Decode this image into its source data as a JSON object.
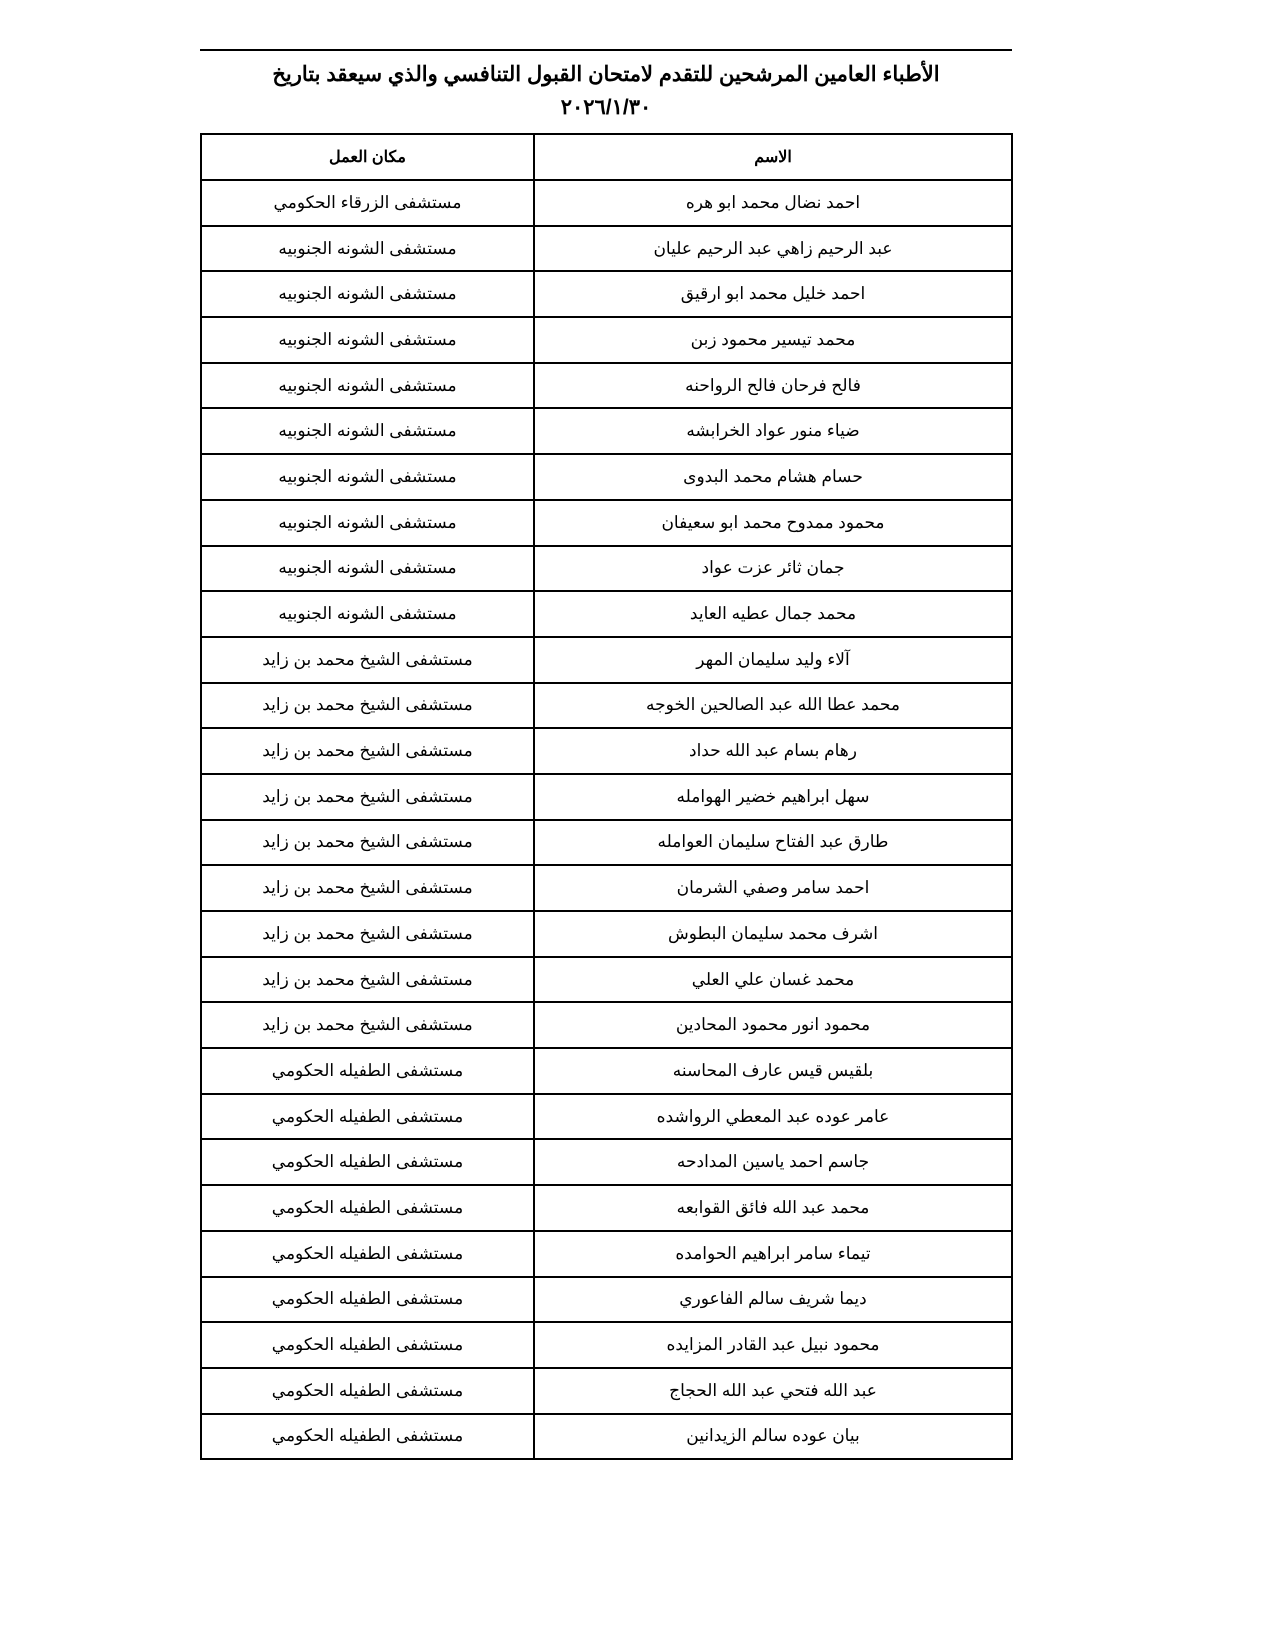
{
  "title": {
    "line1": "الأطباء العامين المرشحين للتقدم لامتحان القبول التنافسي والذي سيعقد بتاريخ",
    "line2": "٢٠٢٦/١/٣٠"
  },
  "table": {
    "headers": {
      "name": "الاسم",
      "workplace": "مكان العمل"
    },
    "rows": [
      {
        "name": "احمد نضال محمد ابو هره",
        "workplace": "مستشفى الزرقاء الحكومي"
      },
      {
        "name": "عبد الرحيم زاهي عبد الرحيم عليان",
        "workplace": "مستشفى الشونه الجنوبيه"
      },
      {
        "name": "احمد خليل محمد ابو ارقيق",
        "workplace": "مستشفى الشونه الجنوبيه"
      },
      {
        "name": "محمد تيسير محمود زبن",
        "workplace": "مستشفى الشونه الجنوبيه"
      },
      {
        "name": "فالح فرحان فالح الرواحنه",
        "workplace": "مستشفى الشونه الجنوبيه"
      },
      {
        "name": "ضياء منور عواد الخرابشه",
        "workplace": "مستشفى الشونه الجنوبيه"
      },
      {
        "name": "حسام هشام محمد البدوى",
        "workplace": "مستشفى الشونه الجنوبيه"
      },
      {
        "name": "محمود ممدوح محمد ابو سعيفان",
        "workplace": "مستشفى الشونه الجنوبيه"
      },
      {
        "name": "جمان ثائر عزت عواد",
        "workplace": "مستشفى الشونه الجنوبيه"
      },
      {
        "name": "محمد جمال عطيه العايد",
        "workplace": "مستشفى الشونه الجنوبيه"
      },
      {
        "name": "آلاء وليد سليمان المهر",
        "workplace": "مستشفى الشيخ محمد بن زايد"
      },
      {
        "name": "محمد عطا الله عبد الصالحين الخوجه",
        "workplace": "مستشفى الشيخ محمد بن زايد"
      },
      {
        "name": "رهام بسام عبد الله حداد",
        "workplace": "مستشفى الشيخ محمد بن زايد"
      },
      {
        "name": "سهل ابراهيم خضير الهوامله",
        "workplace": "مستشفى الشيخ محمد بن زايد"
      },
      {
        "name": "طارق عبد الفتاح سليمان العوامله",
        "workplace": "مستشفى الشيخ محمد بن زايد"
      },
      {
        "name": "احمد سامر وصفي الشرمان",
        "workplace": "مستشفى الشيخ محمد بن زايد"
      },
      {
        "name": "اشرف محمد سليمان البطوش",
        "workplace": "مستشفى الشيخ محمد بن زايد"
      },
      {
        "name": "محمد غسان علي العلي",
        "workplace": "مستشفى الشيخ محمد بن زايد"
      },
      {
        "name": "محمود انور محمود المحادين",
        "workplace": "مستشفى الشيخ محمد بن زايد"
      },
      {
        "name": "بلقيس قيس عارف المحاسنه",
        "workplace": "مستشفى الطفيله الحكومي"
      },
      {
        "name": "عامر عوده عبد المعطي الرواشده",
        "workplace": "مستشفى الطفيله الحكومي"
      },
      {
        "name": "جاسم احمد ياسين المدادحه",
        "workplace": "مستشفى الطفيله الحكومي"
      },
      {
        "name": "محمد عبد الله فائق القوابعه",
        "workplace": "مستشفى الطفيله الحكومي"
      },
      {
        "name": "تيماء سامر ابراهيم الحوامده",
        "workplace": "مستشفى الطفيله الحكومي"
      },
      {
        "name": "ديما شريف سالم الفاعوري",
        "workplace": "مستشفى الطفيله الحكومي"
      },
      {
        "name": "محمود نبيل عبد القادر المزايده",
        "workplace": "مستشفى الطفيله الحكومي"
      },
      {
        "name": "عبد الله فتحي عبد الله الحجاج",
        "workplace": "مستشفى الطفيله الحكومي"
      },
      {
        "name": "بيان عوده سالم الزيدانين",
        "workplace": "مستشفى الطفيله الحكومي"
      }
    ]
  }
}
